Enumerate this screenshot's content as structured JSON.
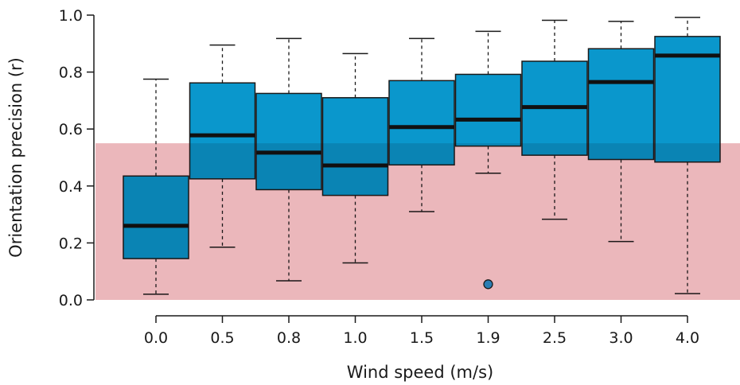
{
  "chart_data": {
    "type": "box",
    "xlabel": "Wind speed (m/s)",
    "ylabel": "Orientation precision (r)",
    "ylim": [
      0,
      1
    ],
    "yticks": [
      "0.0",
      "0.2",
      "0.4",
      "0.6",
      "0.8",
      "1.0"
    ],
    "threshold": 0.55,
    "colors": {
      "box_fill": "#0a97cc",
      "box_stroke": "#1a1a1a",
      "median": "#111111",
      "threshold_band": "#e8a4a9",
      "outlier_fill": "#2a7db3"
    },
    "categories": [
      "0.0",
      "0.5",
      "0.8",
      "1.0",
      "1.5",
      "1.9",
      "2.5",
      "3.0",
      "4.0"
    ],
    "boxes": [
      {
        "min": 0.02,
        "q1": 0.145,
        "median": 0.26,
        "q3": 0.435,
        "max": 0.775
      },
      {
        "min": 0.185,
        "q1": 0.425,
        "median": 0.578,
        "q3": 0.762,
        "max": 0.895
      },
      {
        "min": 0.067,
        "q1": 0.387,
        "median": 0.517,
        "q3": 0.725,
        "max": 0.918
      },
      {
        "min": 0.13,
        "q1": 0.367,
        "median": 0.472,
        "q3": 0.71,
        "max": 0.865
      },
      {
        "min": 0.31,
        "q1": 0.474,
        "median": 0.607,
        "q3": 0.77,
        "max": 0.918
      },
      {
        "min": 0.445,
        "q1": 0.54,
        "median": 0.633,
        "q3": 0.792,
        "max": 0.943
      },
      {
        "min": 0.283,
        "q1": 0.508,
        "median": 0.677,
        "q3": 0.838,
        "max": 0.982
      },
      {
        "min": 0.205,
        "q1": 0.493,
        "median": 0.765,
        "q3": 0.882,
        "max": 0.978
      },
      {
        "min": 0.022,
        "q1": 0.484,
        "median": 0.858,
        "q3": 0.925,
        "max": 0.992
      }
    ],
    "outliers": [
      {
        "category": "1.9",
        "value": 0.055
      }
    ]
  }
}
